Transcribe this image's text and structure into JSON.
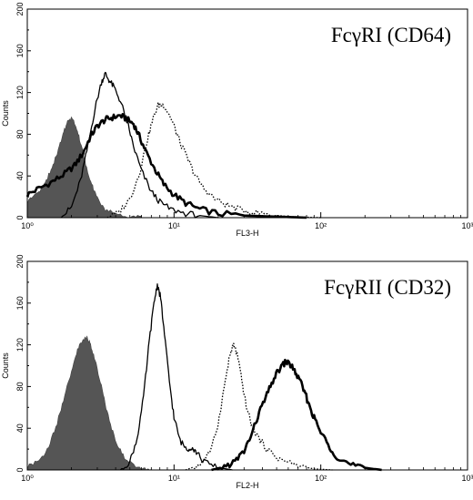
{
  "chart_data": [
    {
      "type": "area",
      "title": "FcγRI (CD64)",
      "xlabel": "FL3-H",
      "ylabel": "Counts",
      "x_scale": "log",
      "xlim": [
        1,
        1000
      ],
      "ylim": [
        0,
        200
      ],
      "x_ticks": [
        "10⁰",
        "10¹",
        "10²",
        "10³"
      ],
      "y_ticks": [
        "0",
        "40",
        "80",
        "120",
        "160",
        "200"
      ],
      "series": [
        {
          "style": "filled-gray",
          "color": "#555555",
          "points": [
            [
              1.0,
              15
            ],
            [
              1.15,
              22
            ],
            [
              1.3,
              32
            ],
            [
              1.45,
              45
            ],
            [
              1.6,
              62
            ],
            [
              1.75,
              80
            ],
            [
              1.88,
              92
            ],
            [
              2.0,
              95
            ],
            [
              2.15,
              88
            ],
            [
              2.3,
              72
            ],
            [
              2.5,
              52
            ],
            [
              2.75,
              32
            ],
            [
              3.0,
              18
            ],
            [
              3.4,
              8
            ],
            [
              4.0,
              3
            ],
            [
              5.0,
              1
            ],
            [
              6.0,
              0
            ]
          ]
        },
        {
          "style": "thick-solid",
          "color": "#000000",
          "points": [
            [
              1.0,
              22
            ],
            [
              1.2,
              28
            ],
            [
              1.5,
              35
            ],
            [
              1.8,
              42
            ],
            [
              2.1,
              50
            ],
            [
              2.4,
              62
            ],
            [
              2.7,
              78
            ],
            [
              3.0,
              88
            ],
            [
              3.4,
              94
            ],
            [
              3.8,
              96
            ],
            [
              4.3,
              98
            ],
            [
              4.8,
              94
            ],
            [
              5.3,
              90
            ],
            [
              5.8,
              78
            ],
            [
              6.5,
              62
            ],
            [
              7.5,
              45
            ],
            [
              8.5,
              32
            ],
            [
              10,
              22
            ],
            [
              12,
              14
            ],
            [
              15,
              8
            ],
            [
              20,
              4
            ],
            [
              30,
              2
            ],
            [
              50,
              1
            ],
            [
              80,
              0
            ]
          ]
        },
        {
          "style": "thin-solid",
          "color": "#000000",
          "points": [
            [
              1.7,
              0
            ],
            [
              2.0,
              10
            ],
            [
              2.3,
              35
            ],
            [
              2.6,
              70
            ],
            [
              2.9,
              105
            ],
            [
              3.2,
              130
            ],
            [
              3.4,
              138
            ],
            [
              3.6,
              132
            ],
            [
              3.9,
              125
            ],
            [
              4.3,
              112
            ],
            [
              4.8,
              92
            ],
            [
              5.3,
              68
            ],
            [
              6.0,
              45
            ],
            [
              7.0,
              25
            ],
            [
              8.0,
              15
            ],
            [
              9.5,
              8
            ],
            [
              12,
              4
            ],
            [
              15,
              2
            ],
            [
              20,
              0
            ]
          ]
        },
        {
          "style": "dotted",
          "color": "#000000",
          "points": [
            [
              3.5,
              0
            ],
            [
              4.2,
              5
            ],
            [
              5.0,
              18
            ],
            [
              5.8,
              42
            ],
            [
              6.5,
              72
            ],
            [
              7.2,
              95
            ],
            [
              7.8,
              108
            ],
            [
              8.5,
              108
            ],
            [
              9.2,
              100
            ],
            [
              10,
              88
            ],
            [
              11,
              72
            ],
            [
              12.5,
              55
            ],
            [
              14,
              40
            ],
            [
              16,
              28
            ],
            [
              19,
              18
            ],
            [
              23,
              12
            ],
            [
              28,
              8
            ],
            [
              35,
              5
            ],
            [
              45,
              3
            ],
            [
              60,
              1
            ],
            [
              100,
              0
            ]
          ]
        }
      ]
    },
    {
      "type": "area",
      "title": "FcγRII (CD32)",
      "xlabel": "FL2-H",
      "ylabel": "Counts",
      "x_scale": "log",
      "xlim": [
        1,
        1000
      ],
      "ylim": [
        0,
        200
      ],
      "x_ticks": [
        "10⁰",
        "10¹",
        "10²",
        "10³"
      ],
      "y_ticks": [
        "0",
        "40",
        "80",
        "120",
        "160",
        "200"
      ],
      "series": [
        {
          "style": "filled-gray",
          "color": "#555555",
          "points": [
            [
              1.0,
              3
            ],
            [
              1.2,
              8
            ],
            [
              1.4,
              22
            ],
            [
              1.6,
              45
            ],
            [
              1.8,
              72
            ],
            [
              2.0,
              95
            ],
            [
              2.2,
              115
            ],
            [
              2.4,
              125
            ],
            [
              2.55,
              128
            ],
            [
              2.7,
              120
            ],
            [
              2.9,
              105
            ],
            [
              3.2,
              80
            ],
            [
              3.5,
              55
            ],
            [
              3.9,
              32
            ],
            [
              4.4,
              16
            ],
            [
              5.0,
              7
            ],
            [
              6.0,
              2
            ],
            [
              7.0,
              0
            ]
          ]
        },
        {
          "style": "thin-solid",
          "color": "#000000",
          "points": [
            [
              4.3,
              0
            ],
            [
              5.0,
              8
            ],
            [
              5.6,
              30
            ],
            [
              6.2,
              70
            ],
            [
              6.8,
              125
            ],
            [
              7.3,
              160
            ],
            [
              7.7,
              178
            ],
            [
              8.1,
              165
            ],
            [
              8.6,
              130
            ],
            [
              9.3,
              85
            ],
            [
              10.0,
              50
            ],
            [
              11.0,
              28
            ],
            [
              12.2,
              20
            ],
            [
              13.2,
              22
            ],
            [
              14.2,
              17
            ],
            [
              16,
              8
            ],
            [
              19,
              3
            ],
            [
              25,
              0
            ]
          ]
        },
        {
          "style": "dotted",
          "color": "#000000",
          "points": [
            [
              12,
              0
            ],
            [
              15,
              5
            ],
            [
              18,
              20
            ],
            [
              20,
              45
            ],
            [
              22,
              80
            ],
            [
              24,
              110
            ],
            [
              25.5,
              120
            ],
            [
              27,
              110
            ],
            [
              29,
              85
            ],
            [
              31,
              62
            ],
            [
              34,
              42
            ],
            [
              38,
              30
            ],
            [
              43,
              20
            ],
            [
              50,
              12
            ],
            [
              58,
              8
            ],
            [
              70,
              4
            ],
            [
              90,
              1
            ],
            [
              120,
              0
            ]
          ]
        },
        {
          "style": "thick-solid",
          "color": "#000000",
          "points": [
            [
              18,
              0
            ],
            [
              22,
              3
            ],
            [
              26,
              8
            ],
            [
              30,
              18
            ],
            [
              34,
              35
            ],
            [
              38,
              55
            ],
            [
              43,
              72
            ],
            [
              48,
              88
            ],
            [
              53,
              98
            ],
            [
              58,
              104
            ],
            [
              63,
              100
            ],
            [
              68,
              92
            ],
            [
              75,
              80
            ],
            [
              82,
              65
            ],
            [
              90,
              50
            ],
            [
              100,
              36
            ],
            [
              115,
              22
            ],
            [
              130,
              12
            ],
            [
              160,
              5
            ],
            [
              200,
              2
            ],
            [
              260,
              0
            ]
          ]
        }
      ]
    }
  ]
}
